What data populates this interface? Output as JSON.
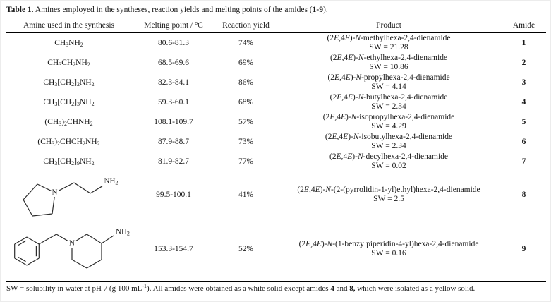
{
  "title": "{b}Table 1.{/b} Amines employed in the syntheses, reaction yields and melting points of the amides ({b}1-9{/b}).",
  "columns": [
    "Amine used in the synthesis",
    "Melting point / {sup}o{/sup}C",
    "Reaction yield",
    "Product",
    "Amide"
  ],
  "rows": [
    {
      "amine": "CH{sub}3{/sub}NH{sub}2{/sub}",
      "melting_point": "80.6-81.3",
      "yield": "74%",
      "product": "(2{i}E{/i},4{i}E{/i})-{i}N{/i}-methylhexa-2,4-dienamide",
      "sw": "SW = 21.28",
      "amide": "1"
    },
    {
      "amine": "CH{sub}3{/sub}CH{sub}2{/sub}NH{sub}2{/sub}",
      "melting_point": "68.5-69.6",
      "yield": "69%",
      "product": "(2{i}E{/i},4{i}E{/i})-{i}N{/i}-ethylhexa-2,4-dienamide",
      "sw": "SW = 10.86",
      "amide": "2"
    },
    {
      "amine": "CH{sub}3{/sub}[CH{sub}2{/sub}]{sub}2{/sub}NH{sub}2{/sub}",
      "melting_point": "82.3-84.1",
      "yield": "86%",
      "product": "(2{i}E{/i},4{i}E{/i})-{i}N{/i}-propylhexa-2,4-dienamide",
      "sw": "SW = 4.14",
      "amide": "3"
    },
    {
      "amine": "CH{sub}3{/sub}[CH{sub}2{/sub}]{sub}3{/sub}NH{sub}2{/sub}",
      "melting_point": "59.3-60.1",
      "yield": "68%",
      "product": "(2{i}E{/i},4{i}E{/i})-{i}N{/i}-butylhexa-2,4-dienamide",
      "sw": "SW = 2.34",
      "amide": "4"
    },
    {
      "amine": "(CH{sub}3{/sub}){sub}2{/sub}CHNH{sub}2{/sub}",
      "melting_point": "108.1-109.7",
      "yield": "57%",
      "product": "(2{i}E{/i},4{i}E{/i})-{i}N{/i}-isopropylhexa-2,4-dienamide",
      "sw": "SW = 4.29",
      "amide": "5"
    },
    {
      "amine": "(CH{sub}3{/sub}){sub}2{/sub}CHCH{sub}2{/sub}NH{sub}2{/sub}",
      "melting_point": "87.9-88.7",
      "yield": "73%",
      "product": "(2{i}E{/i},4{i}E{/i})-{i}N{/i}-isobutylhexa-2,4-dienamide",
      "sw": "SW = 2.34",
      "amide": "6"
    },
    {
      "amine": "CH{sub}3{/sub}[CH{sub}2{/sub}]{sub}9{/sub}NH{sub}2{/sub}",
      "melting_point": "81.9-82.7",
      "yield": "77%",
      "product": "(2{i}E{/i},4{i}E{/i})-{i}N{/i}-decylhexa-2,4-dienamide",
      "sw": "SW = 0.02",
      "amide": "7"
    },
    {
      "amine": "",
      "structure_labels": {
        "n": "N",
        "nh2": "NH{sub}2{/sub}"
      },
      "melting_point": "99.5-100.1",
      "yield": "41%",
      "product": "(2{i}E{/i},4{i}E{/i})-{i}N{/i}-(2-(pyrrolidin-1-yl)ethyl)hexa-2,4-dienamide",
      "sw": "SW = 2.5",
      "amide": "8"
    },
    {
      "amine": "",
      "structure_labels": {
        "n": "N",
        "nh2": "NH{sub}2{/sub}"
      },
      "melting_point": "153.3-154.7",
      "yield": "52%",
      "product": "(2{i}E{/i},4{i}E{/i})-{i}N{/i}-(1-benzylpiperidin-4-yl)hexa-2,4-dienamide",
      "sw": "SW = 0.16",
      "amide": "9"
    }
  ],
  "footnote": "SW = solubility in water at pH 7 (g 100 mL{sup}-1{/sup}). All amides were obtained as a white solid except amides {b}4{/b} and {b}8,{/b} which were isolated as a yellow solid."
}
